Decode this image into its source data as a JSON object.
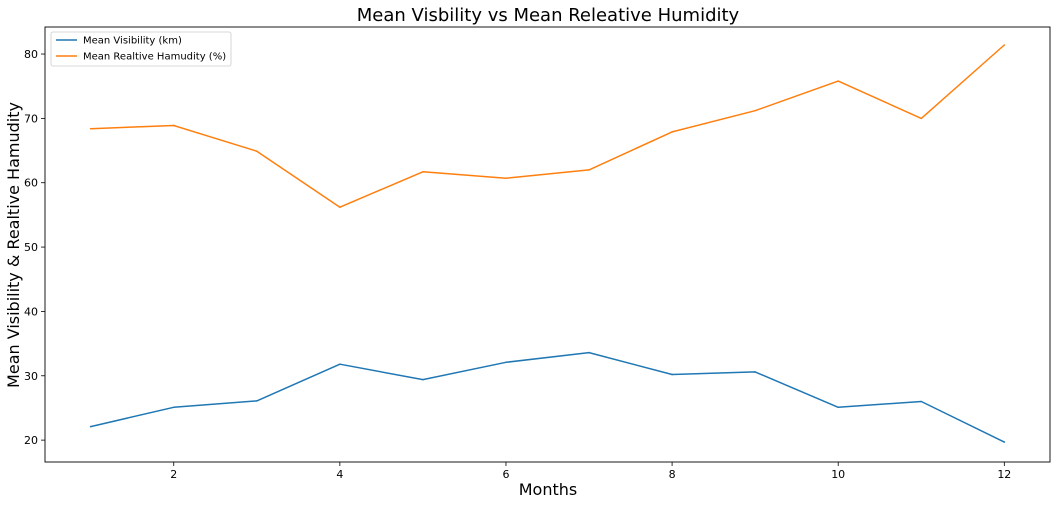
{
  "chart_data": {
    "type": "line",
    "title": "Mean Visbility vs Mean Releative Humidity",
    "xlabel": "Months",
    "ylabel": "Mean Visibility & Realtive Hamudity",
    "x": [
      1,
      2,
      3,
      4,
      5,
      6,
      7,
      8,
      9,
      10,
      11,
      12
    ],
    "x_ticks": [
      2,
      4,
      6,
      8,
      10,
      12
    ],
    "y_ticks": [
      20,
      30,
      40,
      50,
      60,
      70,
      80
    ],
    "xlim": [
      0.45,
      12.55
    ],
    "ylim": [
      16.6,
      84.2
    ],
    "grid": false,
    "legend_position": "top-left",
    "series": [
      {
        "name": "Mean Visibility (km)",
        "color": "#1f77b4",
        "values": [
          22.1,
          25.1,
          26.1,
          31.8,
          29.4,
          32.1,
          33.6,
          30.2,
          30.6,
          25.1,
          26.0,
          19.7
        ]
      },
      {
        "name": "Mean Realtive Hamudity (%)",
        "color": "#ff7f0e",
        "values": [
          68.4,
          68.9,
          64.9,
          56.2,
          61.7,
          60.7,
          62.0,
          67.9,
          71.2,
          75.8,
          70.0,
          81.4
        ]
      }
    ]
  }
}
